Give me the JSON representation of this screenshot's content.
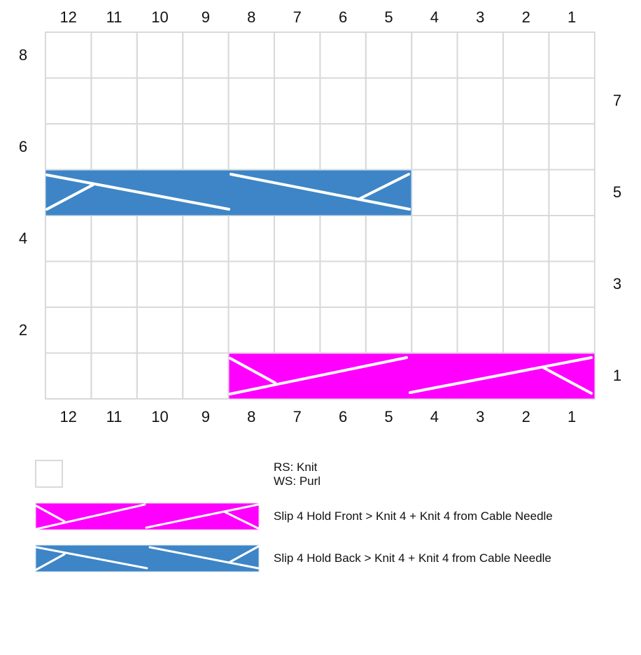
{
  "chart": {
    "columns_top": [
      "12",
      "11",
      "10",
      "9",
      "8",
      "7",
      "6",
      "5",
      "4",
      "3",
      "2",
      "1"
    ],
    "columns_bottom": [
      "12",
      "11",
      "10",
      "9",
      "8",
      "7",
      "6",
      "5",
      "4",
      "3",
      "2",
      "1"
    ],
    "rows_left": [
      "8",
      "6",
      "4",
      "2"
    ],
    "rows_right": [
      "7",
      "5",
      "3",
      "1"
    ],
    "colors": {
      "grid": "#d9d9d9",
      "front_cable": "#ff00ff",
      "back_cable": "#3d85c6",
      "stroke": "#ffffff"
    }
  },
  "cables": [
    {
      "name": "back-cable",
      "row": 5,
      "from_col": 12,
      "to_col": 5,
      "type": "Slip 4 Hold Back"
    },
    {
      "name": "front-cable",
      "row": 1,
      "from_col": 8,
      "to_col": 1,
      "type": "Slip 4 Hold Front"
    }
  ],
  "legend": {
    "knit_rs": "RS: Knit",
    "knit_ws": "WS: Purl",
    "front": "Slip 4 Hold Front > Knit 4 + Knit 4 from Cable Needle",
    "back": "Slip 4 Hold Back > Knit 4 + Knit 4 from Cable Needle"
  }
}
